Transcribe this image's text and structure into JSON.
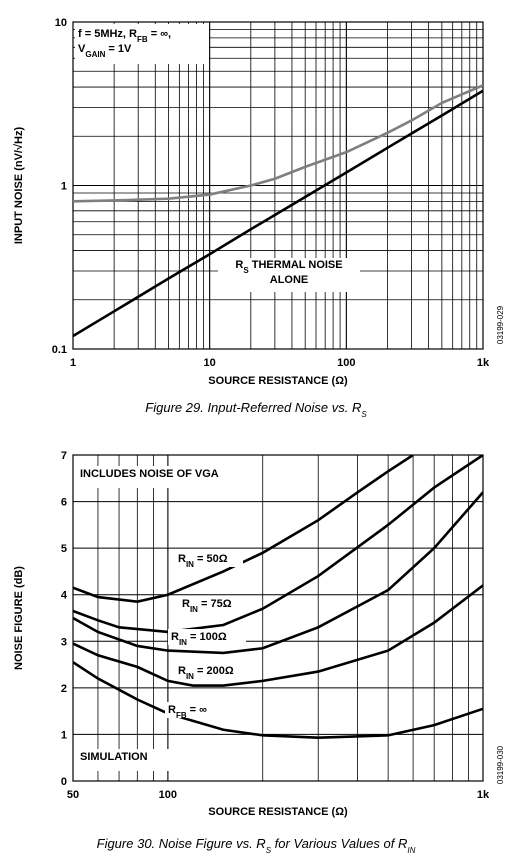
{
  "chart_data": [
    {
      "type": "line",
      "xscale": "log",
      "yscale": "log",
      "grid": true,
      "x": [
        1,
        2,
        5,
        10,
        20,
        30,
        50,
        100,
        200,
        300,
        500,
        1000
      ],
      "series": [
        {
          "color": "#7f7f7f",
          "values": [
            0.8,
            0.81,
            0.83,
            0.88,
            1.0,
            1.1,
            1.3,
            1.6,
            2.1,
            2.5,
            3.2,
            4.1
          ]
        },
        {
          "color": "#000000",
          "values": [
            0.12,
            0.17,
            0.27,
            0.38,
            0.54,
            0.66,
            0.85,
            1.2,
            1.7,
            2.08,
            2.68,
            3.8
          ]
        }
      ],
      "xlim": [
        1,
        1000
      ],
      "xticks": [
        1,
        10,
        100,
        {
          "value": 1000,
          "label": "1k"
        }
      ],
      "ylim": [
        0.1,
        10
      ],
      "yticks": [
        0.1,
        1,
        10
      ],
      "xlabel": "SOURCE RESISTANCE (Ω)",
      "ylabel": "INPUT NOISE (nV/√Hz)",
      "annotations": [
        [
          [
            "f = 5MHz, R",
            "FB",
            " = ∞,"
          ],
          [
            "V",
            "GAIN",
            " = 1V"
          ]
        ],
        [
          [
            "R",
            "S",
            " THERMAL NOISE"
          ],
          [
            "ALONE"
          ]
        ]
      ],
      "code": "03199-029",
      "caption": [
        "Figure 29. Input-Referred Noise vs. R",
        "S"
      ]
    },
    {
      "type": "line",
      "xscale": "log",
      "yscale": "linear",
      "grid": true,
      "series": [
        {
          "label": [
            "R",
            "IN",
            " = 50Ω"
          ],
          "color": "#000000",
          "x": [
            50,
            60,
            80,
            100,
            150,
            200,
            300,
            400,
            500,
            600
          ],
          "values": [
            4.15,
            3.95,
            3.85,
            4.0,
            4.5,
            4.9,
            5.6,
            6.2,
            6.65,
            7.0
          ]
        },
        {
          "label": [
            "R",
            "IN",
            " = 75Ω"
          ],
          "color": "#000000",
          "x": [
            50,
            60,
            70,
            100,
            150,
            200,
            300,
            500,
            700,
            1000
          ],
          "values": [
            3.65,
            3.45,
            3.3,
            3.2,
            3.35,
            3.7,
            4.4,
            5.5,
            6.3,
            7.0
          ]
        },
        {
          "label": [
            "R",
            "IN",
            " = 100Ω"
          ],
          "color": "#000000",
          "x": [
            50,
            60,
            80,
            100,
            150,
            200,
            300,
            500,
            700,
            1000
          ],
          "values": [
            3.5,
            3.2,
            2.9,
            2.8,
            2.75,
            2.85,
            3.3,
            4.1,
            5.0,
            6.2
          ]
        },
        {
          "label": [
            "R",
            "IN",
            " = 200Ω"
          ],
          "color": "#000000",
          "x": [
            50,
            60,
            80,
            100,
            120,
            150,
            200,
            300,
            500,
            700,
            1000
          ],
          "values": [
            2.95,
            2.7,
            2.45,
            2.15,
            2.05,
            2.05,
            2.15,
            2.35,
            2.8,
            3.4,
            4.2
          ]
        },
        {
          "label": [
            "R",
            "FB",
            " = ∞"
          ],
          "color": "#000000",
          "x": [
            50,
            60,
            80,
            100,
            150,
            200,
            300,
            500,
            700,
            1000
          ],
          "values": [
            2.55,
            2.2,
            1.75,
            1.45,
            1.1,
            0.98,
            0.93,
            0.98,
            1.2,
            1.55
          ]
        }
      ],
      "xlim": [
        50,
        1000
      ],
      "xticks": [
        50,
        100,
        {
          "value": 1000,
          "label": "1k"
        }
      ],
      "ylim": [
        0,
        7
      ],
      "yticks": [
        0,
        1,
        2,
        3,
        4,
        5,
        6,
        7
      ],
      "xlabel": "SOURCE RESISTANCE (Ω)",
      "ylabel": "NOISE FIGURE (dB)",
      "annotations": [
        [
          [
            "INCLUDES NOISE OF VGA"
          ]
        ],
        [
          [
            "SIMULATION"
          ]
        ]
      ],
      "code": "03199-030",
      "caption": [
        "Figure 30. Noise Figure vs. R",
        "S",
        " for Various Values of R",
        "IN"
      ]
    }
  ]
}
